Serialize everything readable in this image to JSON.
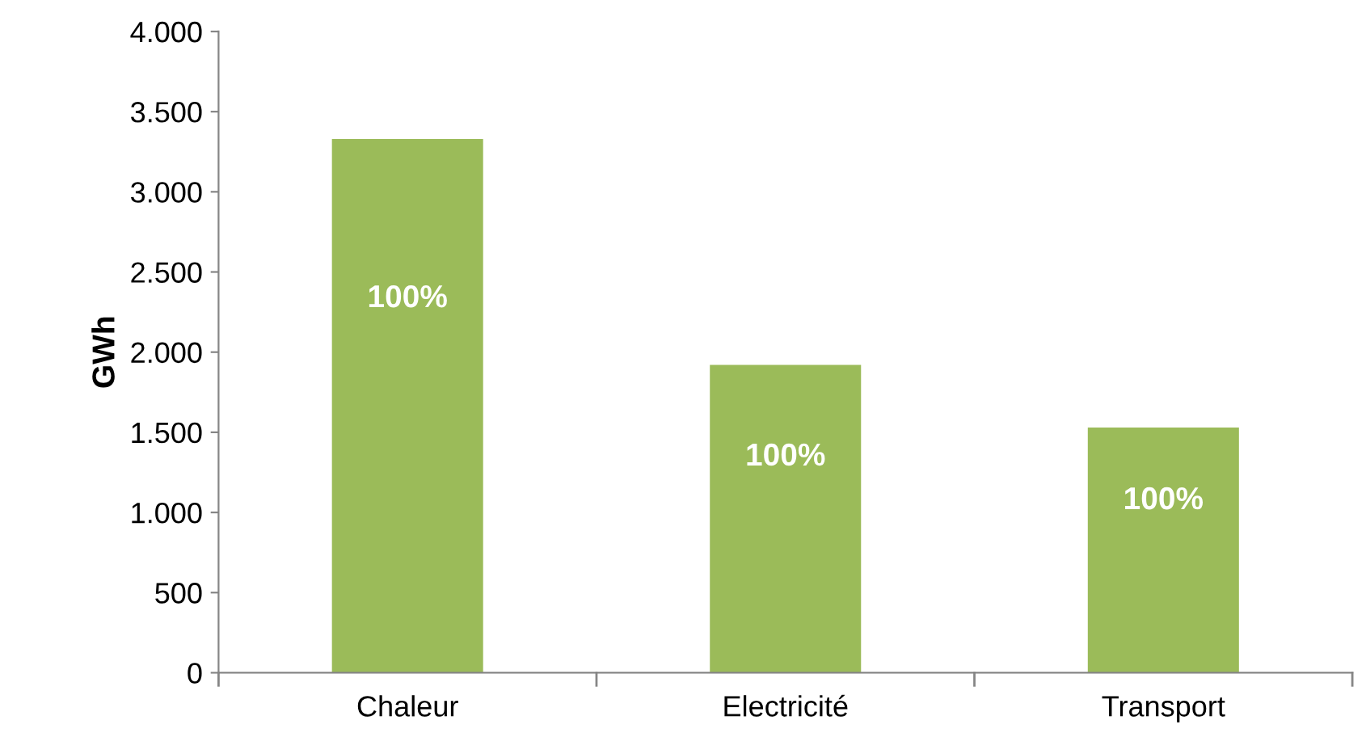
{
  "chart_data": {
    "type": "bar",
    "ylabel": "GWh",
    "categories": [
      "Chaleur",
      "Electricité",
      "Transport"
    ],
    "values": [
      3330,
      1920,
      1530
    ],
    "annotations": [
      "100%",
      "100%",
      "100%"
    ],
    "color": "#9bbb59",
    "ylim": [
      0,
      4000
    ],
    "yticks": [
      0,
      500,
      {
        "value": 1000,
        "label": "1.000"
      },
      {
        "value": 1500,
        "label": "1.500"
      },
      {
        "value": 2000,
        "label": "2.000"
      },
      {
        "value": 2500,
        "label": "2.500"
      },
      {
        "value": 3000,
        "label": "3.000"
      },
      {
        "value": 3500,
        "label": "3.500"
      },
      {
        "value": 4000,
        "label": "4.000"
      }
    ],
    "grid": false,
    "legend": false
  }
}
